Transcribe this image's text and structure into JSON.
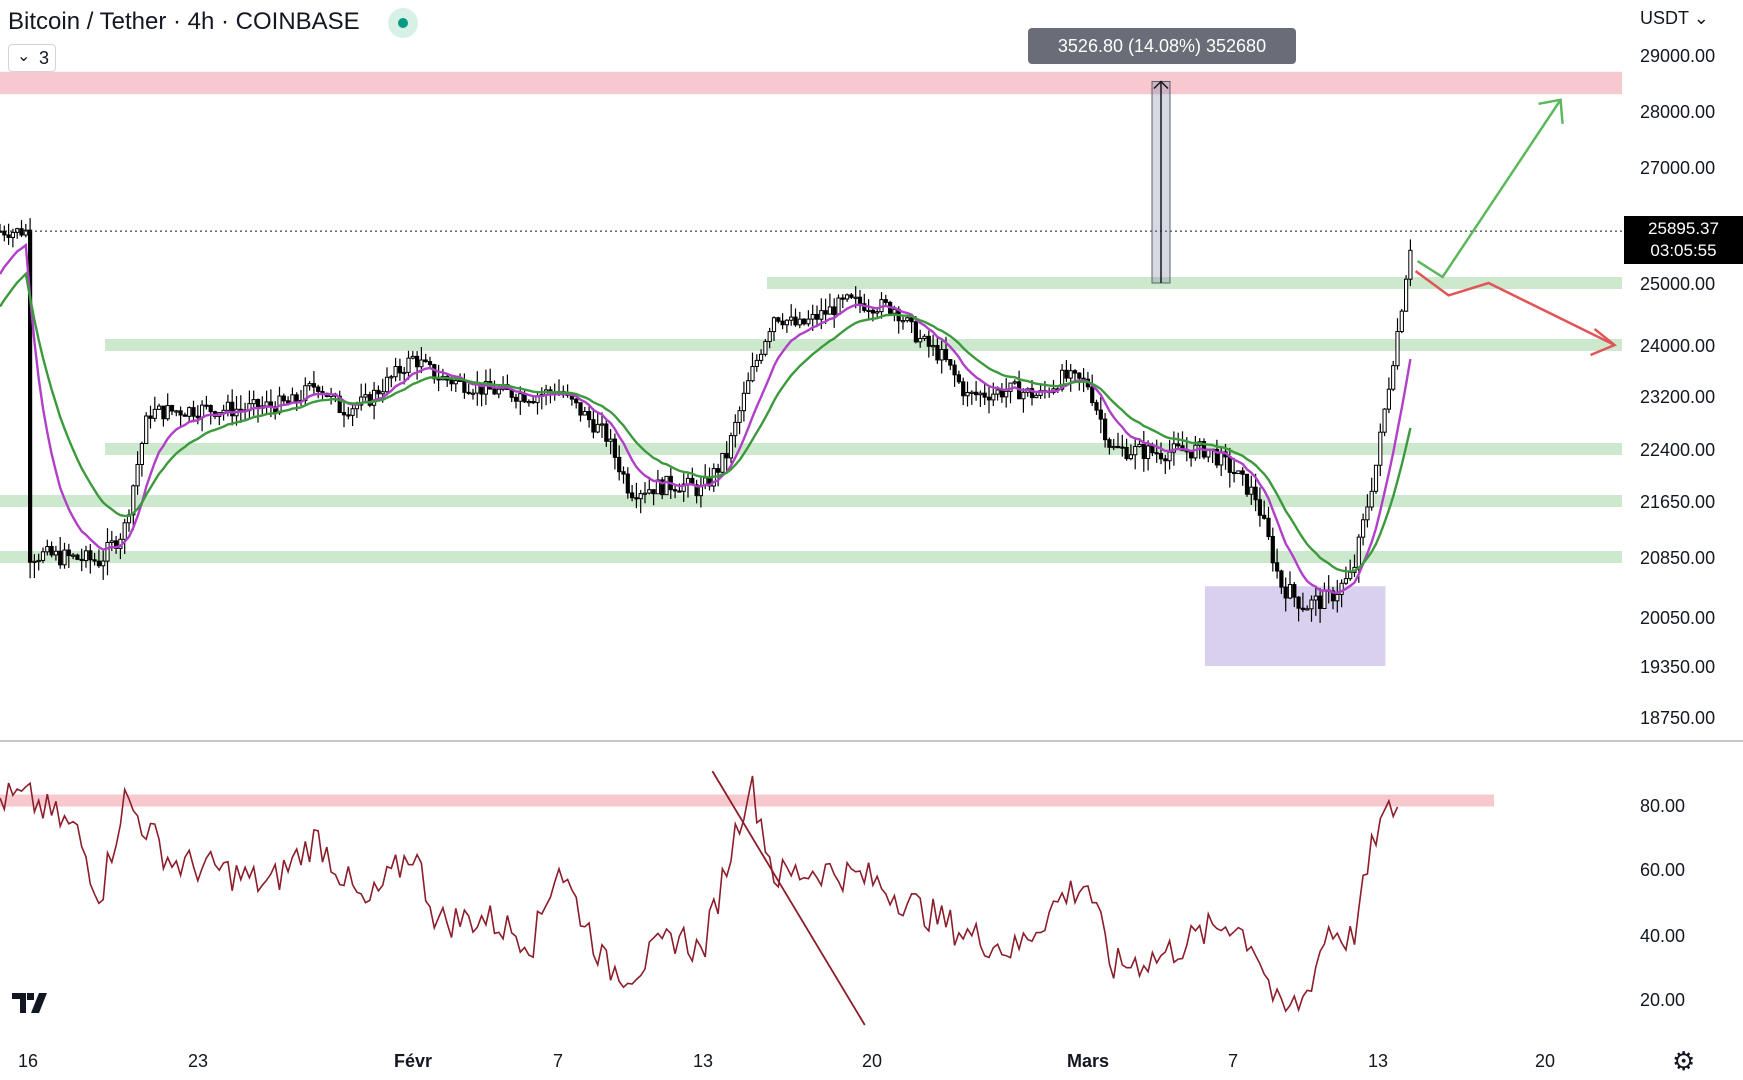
{
  "header": {
    "title": "Bitcoin / Tether · 4h · COINBASE",
    "indicator_count": "3",
    "currency": "USDT",
    "measure_label": "3526.80 (14.08%) 352680",
    "last_price": "25895.37",
    "countdown": "03:05:55"
  },
  "icons": {
    "logo": "tradingview-logo",
    "settings": "sun-gear-icon",
    "collapse": "chevron-down-icon"
  },
  "colors": {
    "candle": "#000000",
    "ema_fast": "#b040c8",
    "ema_slow": "#3c9a3c",
    "support_zone": "#cde9cd",
    "resistance_zone": "#f7c9cf",
    "demand_zone": "#d9cfee",
    "rsi_line": "#8b1e2a",
    "bull_arrow": "#5cb85c",
    "bear_arrow": "#e05555"
  },
  "chart_data": [
    {
      "type": "candlestick",
      "title": "Bitcoin / Tether · 4h · COINBASE",
      "y_axis_ticks": [
        "29000.00",
        "28000.00",
        "27000.00",
        "25000.00",
        "24000.00",
        "23200.00",
        "22400.00",
        "21650.00",
        "20850.00",
        "20050.00",
        "19350.00",
        "18750.00"
      ],
      "x_axis_ticks": [
        "16",
        "23",
        "Févr",
        "7",
        "13",
        "20",
        "Mars",
        "7",
        "13",
        "20"
      ],
      "last_price": 25895.37,
      "close_path": [
        [
          "16",
          20900
        ],
        [
          "19",
          20800
        ],
        [
          "20",
          21250
        ],
        [
          "21",
          22950
        ],
        [
          "23",
          23000
        ],
        [
          "25",
          23000
        ],
        [
          "27",
          23100
        ],
        [
          "28",
          23400
        ],
        [
          "29",
          23000
        ],
        [
          "30",
          23100
        ],
        [
          "Févr",
          23800
        ],
        [
          "2",
          23500
        ],
        [
          "4",
          23300
        ],
        [
          "6",
          23200
        ],
        [
          "7",
          23300
        ],
        [
          "9",
          22600
        ],
        [
          "10",
          21800
        ],
        [
          "12",
          21900
        ],
        [
          "13",
          21800
        ],
        [
          "14",
          22300
        ],
        [
          "15",
          23500
        ],
        [
          "16",
          24500
        ],
        [
          "17",
          24300
        ],
        [
          "19",
          24700
        ],
        [
          "21",
          24600
        ],
        [
          "22",
          24100
        ],
        [
          "23",
          23800
        ],
        [
          "24",
          23200
        ],
        [
          "26",
          23300
        ],
        [
          "27",
          23200
        ],
        [
          "28",
          23500
        ],
        [
          "Mars",
          23400
        ],
        [
          "2",
          22400
        ],
        [
          "4",
          22350
        ],
        [
          "6",
          22400
        ],
        [
          "7",
          22100
        ],
        [
          "8",
          21700
        ],
        [
          "9",
          20500
        ],
        [
          "10",
          20200
        ],
        [
          "11",
          20300
        ],
        [
          "12",
          20600
        ],
        [
          "13",
          22200
        ],
        [
          "14",
          24500
        ],
        [
          "14.5",
          25895.37
        ]
      ],
      "horizontal_levels": [
        25000,
        24000,
        22400,
        21650,
        20850
      ],
      "resistance_zone": [
        28300,
        28700
      ],
      "demand_zone": {
        "price_low": 19350,
        "price_high": 20700,
        "from": "6",
        "to": "13"
      },
      "measurement": {
        "from_price": 25000,
        "to_price": 28526.8,
        "label": "3526.80 (14.08%) 352680"
      },
      "projections": {
        "bullish": [
          [
            25895.37,
            25000
          ],
          [
            28200
          ]
        ],
        "bearish": [
          [
            25000,
            24800
          ],
          [
            24000
          ]
        ]
      },
      "series": [
        {
          "type": "candles"
        },
        {
          "type": "line",
          "color": "#b040c8"
        },
        {
          "type": "line",
          "color": "#3c9a3c"
        }
      ]
    },
    {
      "type": "line",
      "y_axis_ticks": [
        "80.00",
        "60.00",
        "40.00",
        "20.00"
      ],
      "ylim": [
        10,
        90
      ],
      "overbought_level": 82,
      "x": [
        "16",
        "18",
        "19",
        "20",
        "22",
        "24",
        "26",
        "28",
        "30",
        "Févr",
        "2",
        "4",
        "6",
        "7",
        "9",
        "10",
        "12",
        "13",
        "15",
        "16",
        "18",
        "20",
        "22",
        "24",
        "26",
        "28",
        "Mars",
        "2",
        "4",
        "6",
        "7",
        "8",
        "9",
        "10",
        "11",
        "12",
        "13",
        "14"
      ],
      "values": [
        82,
        72,
        52,
        82,
        62,
        60,
        55,
        70,
        48,
        66,
        44,
        45,
        38,
        62,
        30,
        28,
        40,
        34,
        88,
        58,
        60,
        57,
        48,
        40,
        35,
        52,
        56,
        30,
        33,
        41,
        44,
        36,
        15,
        20,
        42,
        38,
        72,
        82
      ],
      "trendline": {
        "from": [
          "15",
          88
        ],
        "to": [
          "20",
          12
        ]
      }
    }
  ]
}
